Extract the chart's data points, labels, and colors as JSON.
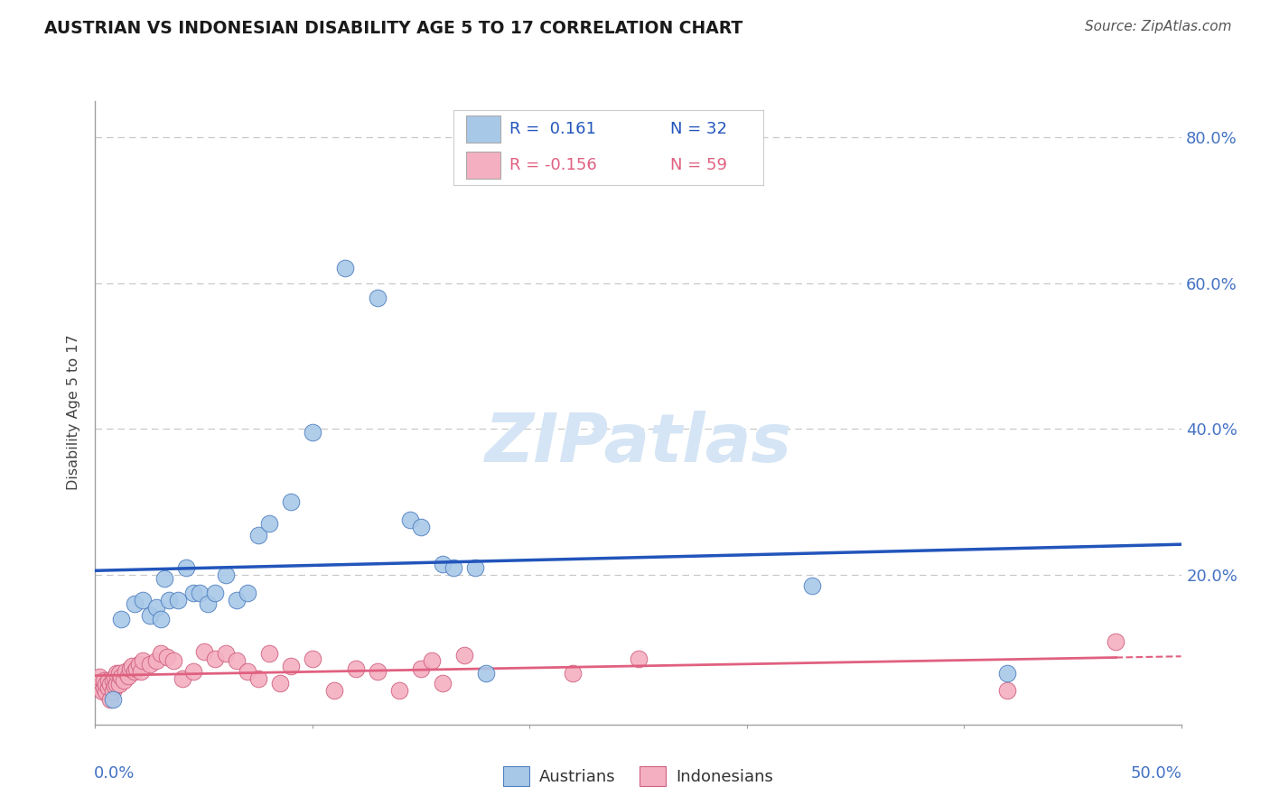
{
  "title": "AUSTRIAN VS INDONESIAN DISABILITY AGE 5 TO 17 CORRELATION CHART",
  "source": "Source: ZipAtlas.com",
  "ylabel": "Disability Age 5 to 17",
  "legend_label1": "Austrians",
  "legend_label2": "Indonesians",
  "xlim": [
    0.0,
    0.5
  ],
  "ylim": [
    -0.005,
    0.85
  ],
  "ytick_vals": [
    0.2,
    0.4,
    0.6,
    0.8
  ],
  "ytick_labels": [
    "20.0%",
    "40.0%",
    "60.0%",
    "80.0%"
  ],
  "color_austrians_fill": "#A8C8E8",
  "color_indonesians_fill": "#F4B0C0",
  "color_austrians_edge": "#5080C0",
  "color_indonesians_edge": "#D06080",
  "line_color_austrians": "#2255BB",
  "line_color_indonesians": "#E06080",
  "watermark_color": "#D5E5F5",
  "austrians_x": [
    0.008,
    0.012,
    0.018,
    0.022,
    0.025,
    0.028,
    0.03,
    0.032,
    0.034,
    0.038,
    0.042,
    0.045,
    0.048,
    0.052,
    0.055,
    0.06,
    0.065,
    0.07,
    0.075,
    0.08,
    0.09,
    0.1,
    0.115,
    0.13,
    0.145,
    0.15,
    0.16,
    0.165,
    0.175,
    0.18,
    0.33,
    0.42
  ],
  "austrians_y": [
    0.03,
    0.14,
    0.16,
    0.165,
    0.145,
    0.155,
    0.14,
    0.195,
    0.165,
    0.165,
    0.21,
    0.175,
    0.175,
    0.16,
    0.175,
    0.2,
    0.165,
    0.175,
    0.255,
    0.27,
    0.3,
    0.395,
    0.62,
    0.58,
    0.275,
    0.265,
    0.215,
    0.21,
    0.21,
    0.065,
    0.185,
    0.065
  ],
  "indonesians_x": [
    0.001,
    0.002,
    0.003,
    0.004,
    0.004,
    0.005,
    0.005,
    0.006,
    0.006,
    0.007,
    0.007,
    0.008,
    0.008,
    0.009,
    0.009,
    0.01,
    0.01,
    0.011,
    0.011,
    0.012,
    0.013,
    0.014,
    0.015,
    0.016,
    0.017,
    0.018,
    0.019,
    0.02,
    0.021,
    0.022,
    0.025,
    0.028,
    0.03,
    0.033,
    0.036,
    0.04,
    0.045,
    0.05,
    0.055,
    0.06,
    0.065,
    0.07,
    0.075,
    0.08,
    0.085,
    0.09,
    0.1,
    0.11,
    0.12,
    0.13,
    0.14,
    0.15,
    0.155,
    0.16,
    0.17,
    0.22,
    0.25,
    0.42,
    0.47
  ],
  "indonesians_y": [
    0.045,
    0.06,
    0.04,
    0.045,
    0.055,
    0.04,
    0.05,
    0.045,
    0.055,
    0.03,
    0.05,
    0.04,
    0.055,
    0.048,
    0.06,
    0.05,
    0.065,
    0.05,
    0.065,
    0.06,
    0.055,
    0.068,
    0.062,
    0.072,
    0.075,
    0.068,
    0.072,
    0.078,
    0.068,
    0.082,
    0.078,
    0.082,
    0.092,
    0.088,
    0.082,
    0.058,
    0.068,
    0.095,
    0.085,
    0.092,
    0.082,
    0.068,
    0.058,
    0.092,
    0.052,
    0.075,
    0.085,
    0.042,
    0.072,
    0.068,
    0.042,
    0.072,
    0.082,
    0.052,
    0.09,
    0.065,
    0.085,
    0.042,
    0.108
  ]
}
